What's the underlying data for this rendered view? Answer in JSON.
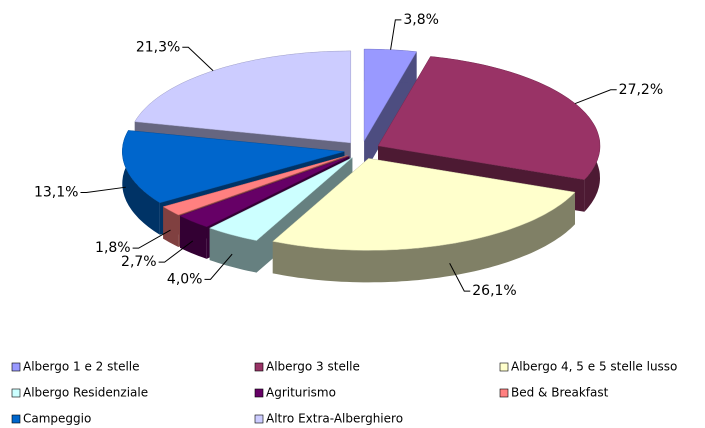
{
  "chart_data": {
    "type": "pie",
    "categories": [
      "Albergo 1 e 2 stelle",
      "Albergo 3 stelle",
      "Albergo 4, 5 e 5 stelle lusso",
      "Albergo Residenziale",
      "Agriturismo",
      "Bed & Breakfast",
      "Campeggio",
      "Altro Extra-Alberghiero"
    ],
    "values": [
      3.8,
      27.2,
      26.1,
      4.0,
      2.7,
      1.8,
      13.1,
      21.3
    ],
    "value_labels": [
      "3,8%",
      "27,2%",
      "26,1%",
      "4,0%",
      "2,7%",
      "1,8%",
      "13,1%",
      "21,3%"
    ],
    "colors": [
      "#9999ff",
      "#993366",
      "#ffffcc",
      "#ccffff",
      "#660066",
      "#ff8080",
      "#0066cc",
      "#ccccff"
    ],
    "legend": "bottom"
  }
}
